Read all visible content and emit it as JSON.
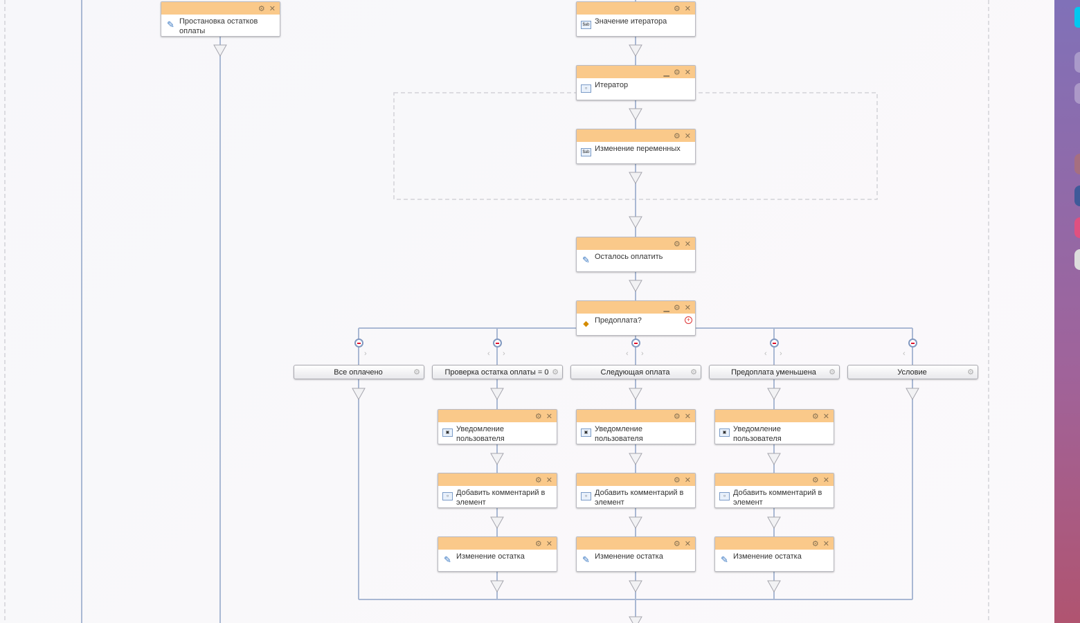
{
  "nodes": {
    "n1": "Простановка остатков оплаты",
    "n2": "Значение итератора",
    "n3": "Итератор",
    "n4": "Изменение переменных",
    "n5": "Осталось оплатить",
    "n6": "Предоплата?",
    "c1a": "Уведомление пользователя",
    "c1b": "Добавить комментарий в элемент",
    "c1c": "Изменение остатка",
    "c2a": "Уведомление пользователя",
    "c2b": "Добавить комментарий в элемент",
    "c2c": "Изменение остатка",
    "c3a": "Уведомление пользователя",
    "c3b": "Добавить комментарий в элемент",
    "c3c": "Изменение остатка"
  },
  "branches": [
    "Все оплачено",
    "Проверка остатка оплаты = 0",
    "Следующая оплата",
    "Предоплата уменьшена",
    "Условие"
  ],
  "icons": {
    "settings": "gear-icon",
    "close": "close-icon",
    "minimize": "minimize-icon"
  },
  "colors": {
    "header": "#fac98a",
    "wire": "#a9b8d3",
    "sidebar_top": "#8071b8",
    "sidebar_bottom": "#b05470"
  }
}
